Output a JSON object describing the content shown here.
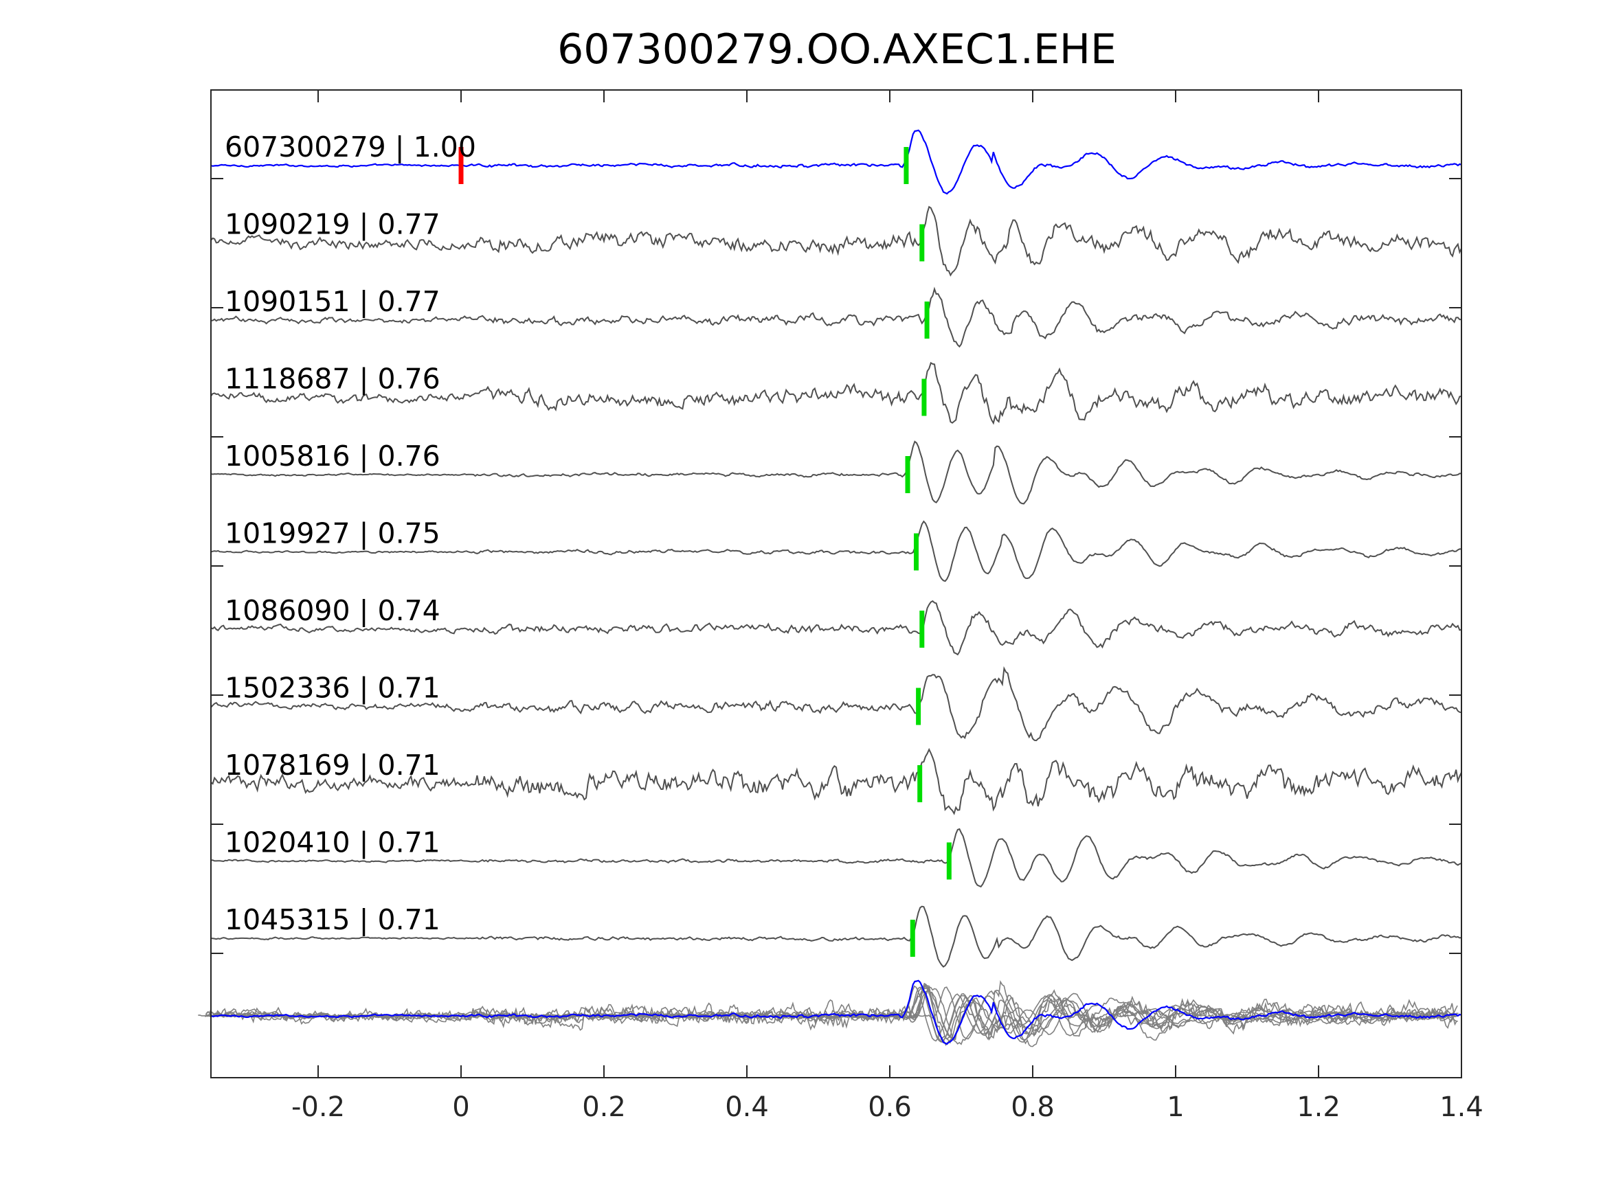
{
  "chart_data": {
    "type": "line",
    "title": "607300279.OO.AXEC1.EHE",
    "xlabel": "",
    "ylabel": "",
    "xlim": [
      -0.35,
      1.4
    ],
    "xticks": [
      -0.2,
      0,
      0.2,
      0.4,
      0.6,
      0.8,
      1,
      1.2,
      1.4
    ],
    "xtick_labels": [
      "-0.2",
      "0",
      "0.2",
      "0.4",
      "0.6",
      "0.8",
      "1",
      "1.2",
      "1.4"
    ],
    "grid": false,
    "legend": "none",
    "colors": {
      "template": "#0000ff",
      "trace": "#505050",
      "stack": "#808080",
      "pick_origin": "#ff0000",
      "pick_arrival": "#00dd00",
      "axis": "#262626"
    },
    "template_origin_time": 0,
    "traces": [
      {
        "label": "607300279 | 1.00",
        "id": "607300279",
        "correlation": 1.0,
        "pick_time": 0.623,
        "color": "#0000ff",
        "style": "template"
      },
      {
        "label": "1090219 | 0.77",
        "id": "1090219",
        "correlation": 0.77,
        "pick_time": 0.645,
        "color": "#505050",
        "style": "noisy"
      },
      {
        "label": "1090151 | 0.77",
        "id": "1090151",
        "correlation": 0.77,
        "pick_time": 0.652,
        "color": "#505050",
        "style": "medium"
      },
      {
        "label": "1118687 | 0.76",
        "id": "1118687",
        "correlation": 0.76,
        "pick_time": 0.648,
        "color": "#505050",
        "style": "noisy"
      },
      {
        "label": "1005816 | 0.76",
        "id": "1005816",
        "correlation": 0.76,
        "pick_time": 0.625,
        "color": "#505050",
        "style": "quiet"
      },
      {
        "label": "1019927 | 0.75",
        "id": "1019927",
        "correlation": 0.75,
        "pick_time": 0.637,
        "color": "#505050",
        "style": "quiet"
      },
      {
        "label": "1086090 | 0.74",
        "id": "1086090",
        "correlation": 0.74,
        "pick_time": 0.645,
        "color": "#505050",
        "style": "medium"
      },
      {
        "label": "1502336 | 0.71",
        "id": "1502336",
        "correlation": 0.71,
        "pick_time": 0.64,
        "color": "#505050",
        "style": "smooth"
      },
      {
        "label": "1078169 | 0.71",
        "id": "1078169",
        "correlation": 0.71,
        "pick_time": 0.642,
        "color": "#505050",
        "style": "very-noisy"
      },
      {
        "label": "1020410 | 0.71",
        "id": "1020410",
        "correlation": 0.71,
        "pick_time": 0.683,
        "color": "#505050",
        "style": "quiet"
      },
      {
        "label": "1045315 | 0.71",
        "id": "1045315",
        "correlation": 0.71,
        "pick_time": 0.632,
        "color": "#505050",
        "style": "quiet"
      }
    ],
    "stack": {
      "description_color": "#808080",
      "template_color": "#0000ff"
    }
  }
}
